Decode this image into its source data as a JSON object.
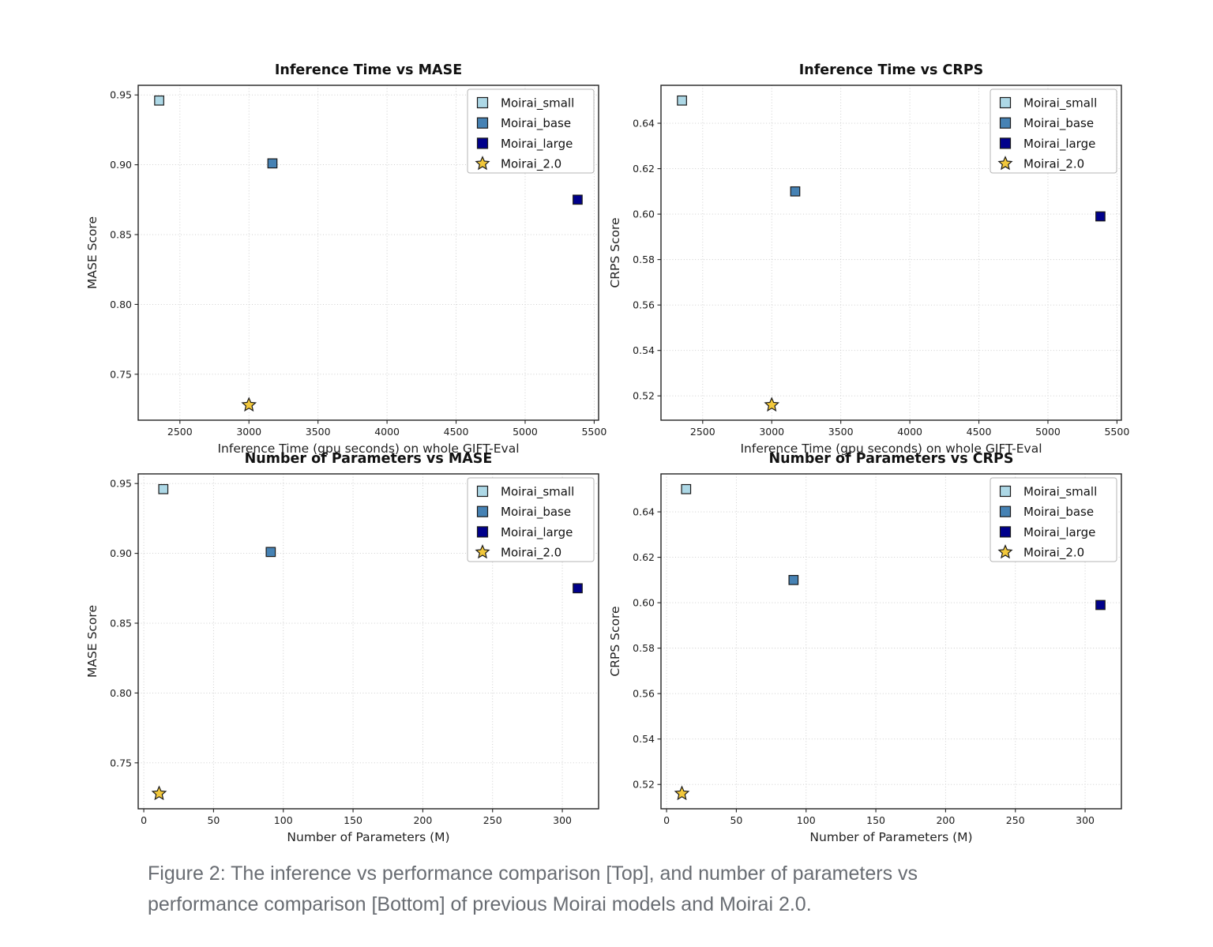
{
  "figure": {
    "caption": {
      "lines": [
        "Figure 2: The inference vs performance comparison [Top], and number of parameters vs",
        "performance comparison [Bottom] of previous Moirai models and Moirai 2.0."
      ]
    }
  },
  "style": {
    "background": "#ffffff",
    "frame_color": "#222222",
    "grid_color": "#c9c9c9",
    "tick_color": "#222222",
    "tick_label_color": "#1c1c1c",
    "title_color": "#111111",
    "axis_label_color": "#222222",
    "marker_edge_color": "#1a1a1a",
    "legend_border_color": "#b5b5b5",
    "legend_fill": "#ffffff",
    "legend_text_color": "#111111",
    "caption_color": "#686c72"
  },
  "legend": {
    "position": "upper right",
    "entries": [
      {
        "label": "Moirai_small",
        "marker": "square",
        "color": "#add8e6"
      },
      {
        "label": "Moirai_base",
        "marker": "square",
        "color": "#4682b4"
      },
      {
        "label": "Moirai_large",
        "marker": "square",
        "color": "#00008b"
      },
      {
        "label": "Moirai_2.0",
        "marker": "star",
        "color": "#f2c83c"
      }
    ]
  },
  "models": [
    {
      "name": "Moirai_small",
      "inference_gpu_seconds": 2350,
      "params_m": 14,
      "mase": 0.946,
      "crps": 0.65
    },
    {
      "name": "Moirai_base",
      "inference_gpu_seconds": 3170,
      "params_m": 91,
      "mase": 0.901,
      "crps": 0.61
    },
    {
      "name": "Moirai_large",
      "inference_gpu_seconds": 5380,
      "params_m": 311,
      "mase": 0.875,
      "crps": 0.599
    },
    {
      "name": "Moirai_2.0",
      "inference_gpu_seconds": 3000,
      "params_m": 11,
      "mase": 0.728,
      "crps": 0.516
    }
  ],
  "chart_data": [
    {
      "type": "scatter",
      "title": "Inference Time vs MASE",
      "xlabel": "Inference Time (gpu seconds) on whole GIFT-Eval",
      "ylabel": "MASE Score",
      "xlim": [
        2198,
        5532
      ],
      "ylim": [
        0.7171,
        0.9569
      ],
      "xticks": [
        2500,
        3000,
        3500,
        4000,
        4500,
        5000,
        5500
      ],
      "xtick_labels": [
        "2500",
        "3000",
        "3500",
        "4000",
        "4500",
        "5000",
        "5500"
      ],
      "yticks": [
        0.75,
        0.8,
        0.85,
        0.9,
        0.95
      ],
      "ytick_labels": [
        "0.75",
        "0.80",
        "0.85",
        "0.90",
        "0.95"
      ],
      "grid": true,
      "legend": true,
      "points": [
        {
          "label": "Moirai_small",
          "x": 2350,
          "y": 0.946
        },
        {
          "label": "Moirai_base",
          "x": 3170,
          "y": 0.901
        },
        {
          "label": "Moirai_large",
          "x": 5380,
          "y": 0.875
        },
        {
          "label": "Moirai_2.0",
          "x": 3000,
          "y": 0.728
        }
      ]
    },
    {
      "type": "scatter",
      "title": "Inference Time vs CRPS",
      "xlabel": "Inference Time (gpu seconds) on whole GIFT-Eval",
      "ylabel": "CRPS Score",
      "xlim": [
        2198,
        5532
      ],
      "ylim": [
        0.5093,
        0.6567
      ],
      "xticks": [
        2500,
        3000,
        3500,
        4000,
        4500,
        5000,
        5500
      ],
      "xtick_labels": [
        "2500",
        "3000",
        "3500",
        "4000",
        "4500",
        "5000",
        "5500"
      ],
      "yticks": [
        0.52,
        0.54,
        0.56,
        0.58,
        0.6,
        0.62,
        0.64
      ],
      "ytick_labels": [
        "0.52",
        "0.54",
        "0.56",
        "0.58",
        "0.60",
        "0.62",
        "0.64"
      ],
      "grid": true,
      "legend": true,
      "points": [
        {
          "label": "Moirai_small",
          "x": 2350,
          "y": 0.65
        },
        {
          "label": "Moirai_base",
          "x": 3170,
          "y": 0.61
        },
        {
          "label": "Moirai_large",
          "x": 5380,
          "y": 0.599
        },
        {
          "label": "Moirai_2.0",
          "x": 3000,
          "y": 0.516
        }
      ]
    },
    {
      "type": "scatter",
      "title": "Number of Parameters vs MASE",
      "xlabel": "Number of Parameters (M)",
      "ylabel": "MASE Score",
      "xlim": [
        -4,
        326
      ],
      "ylim": [
        0.7171,
        0.9569
      ],
      "xticks": [
        0,
        50,
        100,
        150,
        200,
        250,
        300
      ],
      "xtick_labels": [
        "0",
        "50",
        "100",
        "150",
        "200",
        "250",
        "300"
      ],
      "yticks": [
        0.75,
        0.8,
        0.85,
        0.9,
        0.95
      ],
      "ytick_labels": [
        "0.75",
        "0.80",
        "0.85",
        "0.90",
        "0.95"
      ],
      "grid": true,
      "legend": true,
      "points": [
        {
          "label": "Moirai_small",
          "x": 14,
          "y": 0.946
        },
        {
          "label": "Moirai_base",
          "x": 91,
          "y": 0.901
        },
        {
          "label": "Moirai_large",
          "x": 311,
          "y": 0.875
        },
        {
          "label": "Moirai_2.0",
          "x": 11,
          "y": 0.728
        }
      ]
    },
    {
      "type": "scatter",
      "title": "Number of Parameters vs CRPS",
      "xlabel": "Number of Parameters (M)",
      "ylabel": "CRPS Score",
      "xlim": [
        -4,
        326
      ],
      "ylim": [
        0.5093,
        0.6567
      ],
      "xticks": [
        0,
        50,
        100,
        150,
        200,
        250,
        300
      ],
      "xtick_labels": [
        "0",
        "50",
        "100",
        "150",
        "200",
        "250",
        "300"
      ],
      "yticks": [
        0.52,
        0.54,
        0.56,
        0.58,
        0.6,
        0.62,
        0.64
      ],
      "ytick_labels": [
        "0.52",
        "0.54",
        "0.56",
        "0.58",
        "0.60",
        "0.62",
        "0.64"
      ],
      "grid": true,
      "legend": true,
      "points": [
        {
          "label": "Moirai_small",
          "x": 14,
          "y": 0.65
        },
        {
          "label": "Moirai_base",
          "x": 91,
          "y": 0.61
        },
        {
          "label": "Moirai_large",
          "x": 311,
          "y": 0.599
        },
        {
          "label": "Moirai_2.0",
          "x": 11,
          "y": 0.516
        }
      ]
    }
  ]
}
